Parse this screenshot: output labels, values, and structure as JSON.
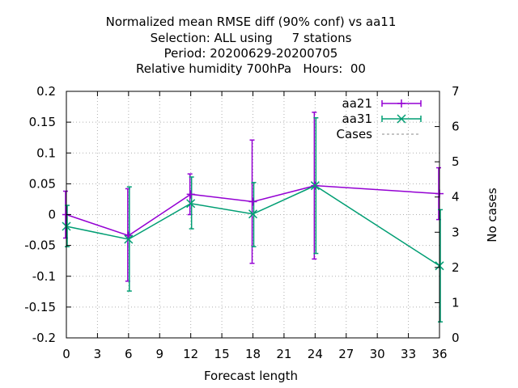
{
  "chart_data": {
    "type": "line",
    "title_lines": [
      "Normalized mean RMSE diff (90% conf) vs aa11",
      "Selection: ALL using     7 stations",
      "Period: 20200629-20200705",
      "Relative humidity 700hPa   Hours:  00"
    ],
    "xlabel": "Forecast length",
    "ylabel": "",
    "y2label": "No cases",
    "xlim": [
      0,
      36
    ],
    "ylim": [
      -0.2,
      0.2
    ],
    "y2lim": [
      0,
      7
    ],
    "xticks": [
      "0",
      "3",
      "6",
      "9",
      "12",
      "15",
      "18",
      "21",
      "24",
      "27",
      "30",
      "33",
      "36"
    ],
    "yticks": [
      "-0.2",
      "-0.15",
      "-0.1",
      "-0.05",
      "0",
      "0.05",
      "0.1",
      "0.15",
      "0.2"
    ],
    "y2ticks": [
      "0",
      "1",
      "2",
      "3",
      "4",
      "5",
      "6",
      "7"
    ],
    "grid": true,
    "legend_position": "top-right",
    "series": [
      {
        "name": "aa21",
        "color": "#9400d3",
        "marker": "plus",
        "x": [
          0,
          6,
          12,
          18,
          24,
          36
        ],
        "y": [
          0.0,
          -0.034,
          0.033,
          0.021,
          0.047,
          0.034
        ],
        "err_low": [
          -0.038,
          -0.108,
          0.0,
          -0.079,
          -0.072,
          -0.008
        ],
        "err_high": [
          0.038,
          0.042,
          0.066,
          0.121,
          0.166,
          0.076
        ]
      },
      {
        "name": "aa31",
        "color": "#009e73",
        "marker": "cross",
        "x": [
          0,
          6,
          12,
          18,
          24,
          36
        ],
        "y": [
          -0.019,
          -0.04,
          0.018,
          0.001,
          0.047,
          -0.083
        ],
        "err_low": [
          -0.052,
          -0.124,
          -0.023,
          -0.052,
          -0.063,
          -0.174
        ],
        "err_high": [
          0.015,
          0.045,
          0.061,
          0.052,
          0.157,
          0.008
        ]
      },
      {
        "name": "Cases",
        "color": "#a0a0a0",
        "marker": "dashed",
        "x": [],
        "y": []
      }
    ]
  }
}
